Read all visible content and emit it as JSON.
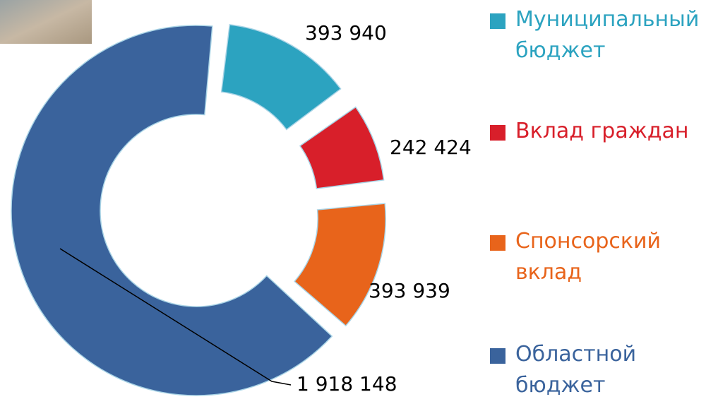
{
  "chart_data": {
    "type": "donut",
    "categories": [
      "Муниципальный бюджет",
      "Вклад граждан",
      "Спонсорский вклад",
      "Областной бюджет"
    ],
    "values": [
      393940,
      242424,
      393939,
      1918148
    ],
    "value_labels": [
      "393 940",
      "242 424",
      "393 939",
      "1 918 148"
    ],
    "colors": [
      "#2ca3c0",
      "#d81f2a",
      "#e8641b",
      "#3a639c"
    ]
  }
}
